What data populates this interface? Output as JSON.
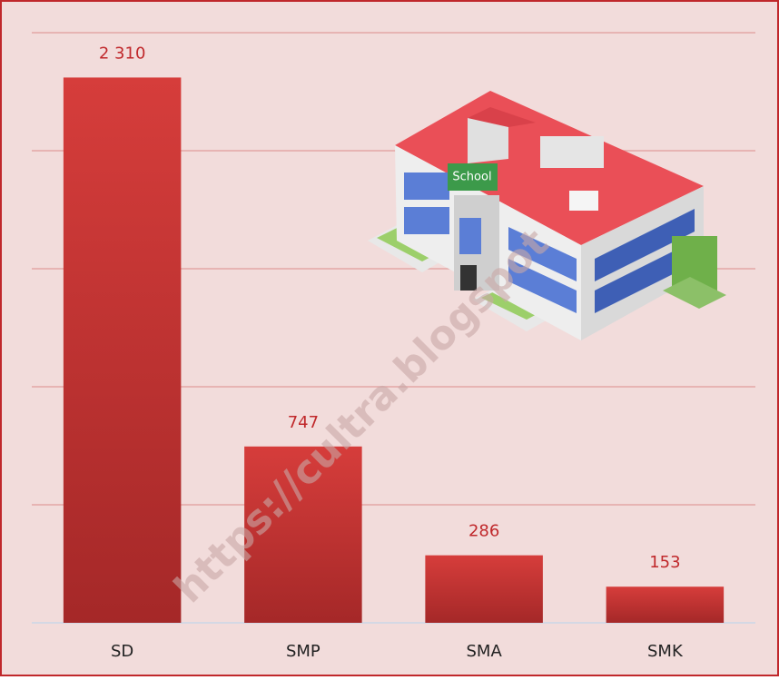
{
  "chart_data": {
    "type": "bar",
    "categories": [
      "SD",
      "SMP",
      "SMA",
      "SMK"
    ],
    "values": [
      2310,
      747,
      286,
      153
    ],
    "value_labels": [
      "2 310",
      "747",
      "286",
      "153"
    ],
    "color": "#cf3535",
    "ylim": [
      0,
      2500
    ],
    "yticks": [
      0,
      500,
      1000,
      1500,
      2000,
      2500
    ],
    "grid": true,
    "watermark": "https://cultra.blogspot",
    "illustration_label": "School"
  }
}
